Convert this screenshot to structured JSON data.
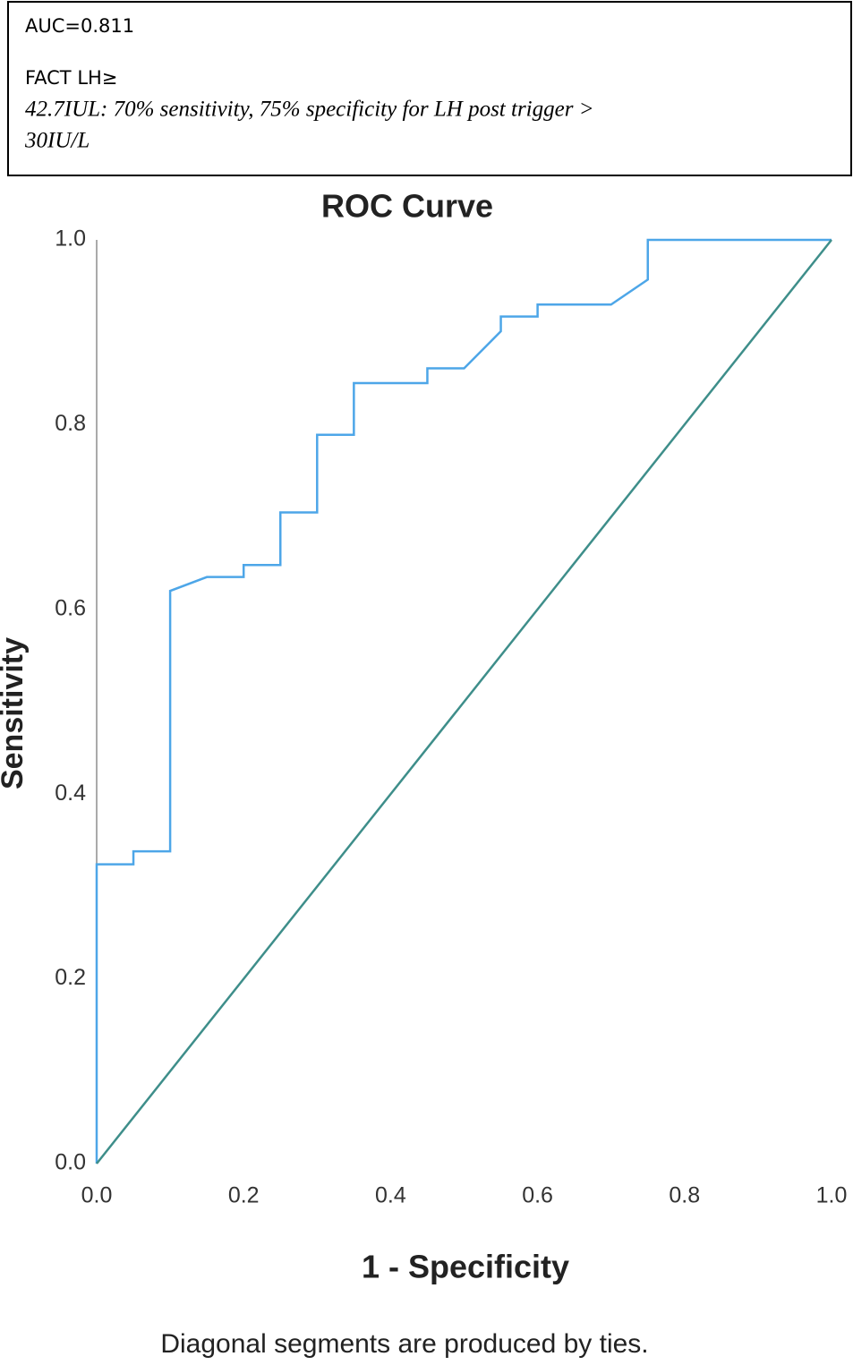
{
  "chart_data": {
    "type": "line",
    "annotations": [
      "AUC=0.811",
      "FACT LH≥",
      "42.7IUL: 70% sensitivity, 75% specificity for LH post trigger >",
      "30IU/L"
    ],
    "title": "ROC Curve",
    "x_label": "1 - Specificity",
    "y_label": "Sensitivity",
    "note": "Diagonal segments are produced by ties.",
    "series": [
      {
        "color": "#4da6e8",
        "x": [
          0,
          0,
          0.05,
          0.05,
          0.1,
          0.1,
          0.15,
          0.2,
          0.2,
          0.25,
          0.25,
          0.3,
          0.3,
          0.35,
          0.35,
          0.45,
          0.45,
          0.5,
          0.55,
          0.55,
          0.6,
          0.6,
          0.7,
          0.75,
          0.75,
          1
        ],
        "values": [
          0,
          0.324,
          0.324,
          0.338,
          0.338,
          0.62,
          0.635,
          0.635,
          0.648,
          0.648,
          0.705,
          0.705,
          0.789,
          0.789,
          0.845,
          0.845,
          0.861,
          0.861,
          0.901,
          0.917,
          0.917,
          0.93,
          0.93,
          0.957,
          1,
          1
        ]
      },
      {
        "color": "#3e8e8a",
        "x": [
          0,
          1
        ],
        "values": [
          0,
          1
        ]
      }
    ],
    "xlim": [
      0,
      1
    ],
    "ylim": [
      0,
      1
    ],
    "xticks": [
      {
        "value": 0,
        "label": "0.0"
      },
      0.2,
      0.4,
      0.6,
      0.8,
      {
        "value": 1,
        "label": "1.0"
      }
    ],
    "yticks": [
      {
        "value": 0,
        "label": "0.0"
      },
      0.2,
      0.4,
      0.6,
      0.8,
      {
        "value": 1,
        "label": "1.0"
      }
    ],
    "grid": false
  }
}
